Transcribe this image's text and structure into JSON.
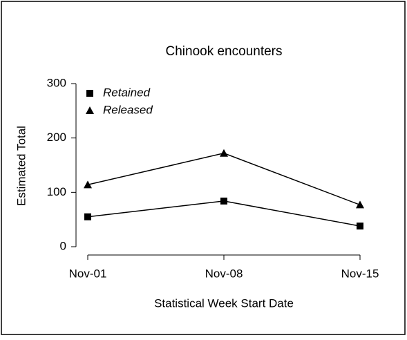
{
  "chart_data": {
    "type": "line",
    "title": "Chinook encounters",
    "x_label": "Statistical Week Start Date",
    "y_label": "Estimated Total",
    "categories": [
      "Nov-01",
      "Nov-08",
      "Nov-15"
    ],
    "series": [
      {
        "name": "Retained",
        "color": "#000000",
        "marker": "square",
        "values": [
          55,
          84,
          38
        ]
      },
      {
        "name": "Released",
        "color": "#000000",
        "marker": "triangle",
        "values": [
          114,
          172,
          77
        ]
      }
    ],
    "ylim": [
      0,
      300
    ],
    "yticks": [
      0,
      100,
      200,
      300
    ],
    "legend": "upper left"
  }
}
